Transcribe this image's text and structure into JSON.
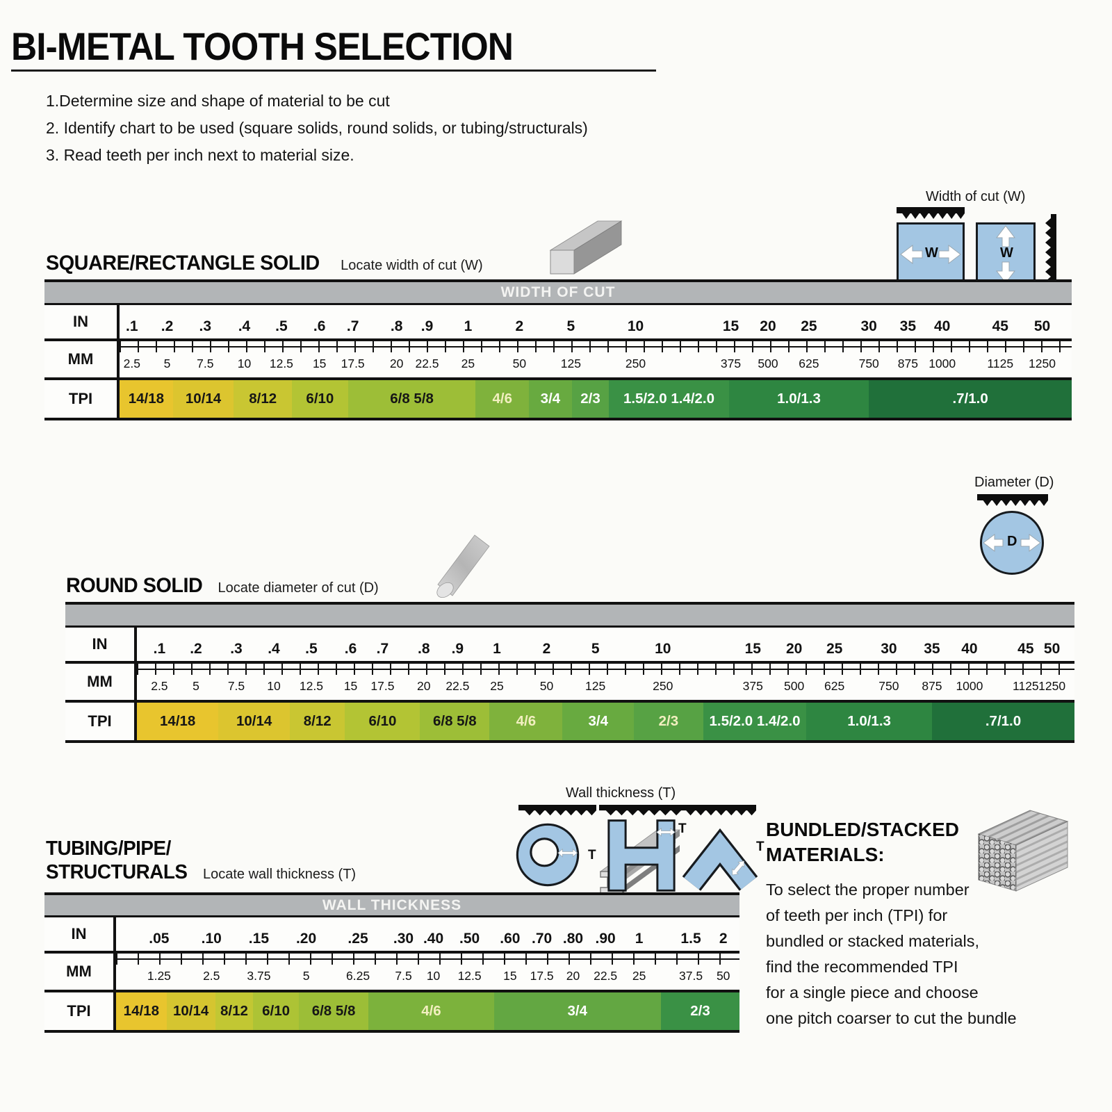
{
  "title": "BI-METAL TOOTH SELECTION",
  "instructions": [
    "1.Determine size and shape of material to be cut",
    "2. Identify chart to be used (square solids, round solids, or tubing/structurals)",
    "3. Read teeth per inch next to material size."
  ],
  "colors": {
    "band_gray": "#b2b5b7",
    "shape_blue": "#a3c6e3",
    "blade_black": "#0d0d0d",
    "tpi_yellow": "#e8c52e",
    "tpi_dark_green": "#20703a"
  },
  "icons": {
    "square_bar": "square-bar-3d-icon",
    "round_rod": "round-rod-3d-icon",
    "i_beam": "i-beam-3d-icon",
    "bundle": "bundled-tubes-3d-icon",
    "saw_blade": "saw-blade-teeth-icon"
  },
  "charts": {
    "square": {
      "heading": "SQUARE/RECTANGLE SOLID",
      "subheading": "Locate width of cut (W)",
      "band_label": "WIDTH OF CUT",
      "rows": {
        "in": "IN",
        "mm": "MM",
        "tpi": "TPI"
      },
      "in_values": [
        ".1",
        ".2",
        ".3",
        ".4",
        ".5",
        ".6",
        ".7",
        ".8",
        ".9",
        "1",
        "2",
        "5",
        "10",
        "15",
        "20",
        "25",
        "30",
        "35",
        "40",
        "45",
        "50"
      ],
      "mm_values": [
        "2.5",
        "5",
        "7.5",
        "10",
        "12.5",
        "15",
        "17.5",
        "20",
        "22.5",
        "25",
        "50",
        "125",
        "250",
        "375",
        "500",
        "625",
        "750",
        "875",
        "1000",
        "1125",
        "1250"
      ],
      "tpi_segments": [
        {
          "label": "14/18",
          "bg": "#e8c52e",
          "fg": "#161616"
        },
        {
          "label": "10/14",
          "bg": "#dcc52f",
          "fg": "#161616"
        },
        {
          "label": "8/12",
          "bg": "#c9c632",
          "fg": "#161616"
        },
        {
          "label": "6/10",
          "bg": "#b3c434",
          "fg": "#161616"
        },
        {
          "label": "6/8 5/8",
          "bg": "#9dbe37",
          "fg": "#161616"
        },
        {
          "label": "4/6",
          "bg": "#7fb23c",
          "fg": "#f2efc0"
        },
        {
          "label": "3/4",
          "bg": "#68aa40",
          "fg": "#ffffff"
        },
        {
          "label": "2/3",
          "bg": "#57a244",
          "fg": "#ffffff"
        },
        {
          "label": "1.5/2.0 1.4/2.0",
          "bg": "#3a9145",
          "fg": "#ffffff"
        },
        {
          "label": "1.0/1.3",
          "bg": "#2e8641",
          "fg": "#ffffff"
        },
        {
          "label": ".7/1.0",
          "bg": "#20703a",
          "fg": "#ffffff"
        }
      ],
      "figure": {
        "caption": "Width of cut (W)",
        "label_left": "W",
        "label_right": "W"
      }
    },
    "round": {
      "heading": "ROUND SOLID",
      "subheading": "Locate diameter of cut (D)",
      "band_label": "",
      "rows": {
        "in": "IN",
        "mm": "MM",
        "tpi": "TPI"
      },
      "in_values": [
        ".1",
        ".2",
        ".3",
        ".4",
        ".5",
        ".6",
        ".7",
        ".8",
        ".9",
        "1",
        "2",
        "5",
        "10",
        "15",
        "20",
        "25",
        "30",
        "35",
        "40",
        "45",
        "50"
      ],
      "mm_values": [
        "2.5",
        "5",
        "7.5",
        "10",
        "12.5",
        "15",
        "17.5",
        "20",
        "22.5",
        "25",
        "50",
        "125",
        "250",
        "375",
        "500",
        "625",
        "750",
        "875",
        "1000",
        "1125",
        "1250"
      ],
      "tpi_segments": [
        {
          "label": "14/18",
          "bg": "#e8c52e",
          "fg": "#161616"
        },
        {
          "label": "10/14",
          "bg": "#dcc52f",
          "fg": "#161616"
        },
        {
          "label": "8/12",
          "bg": "#c9c632",
          "fg": "#161616"
        },
        {
          "label": "6/10",
          "bg": "#b3c434",
          "fg": "#161616"
        },
        {
          "label": "6/8 5/8",
          "bg": "#9dbe37",
          "fg": "#161616"
        },
        {
          "label": "4/6",
          "bg": "#7fb23c",
          "fg": "#f2efc0"
        },
        {
          "label": "3/4",
          "bg": "#68aa40",
          "fg": "#ffffff"
        },
        {
          "label": "2/3",
          "bg": "#57a244",
          "fg": "#f2efc0"
        },
        {
          "label": "1.5/2.0 1.4/2.0",
          "bg": "#3a9145",
          "fg": "#ffffff"
        },
        {
          "label": "1.0/1.3",
          "bg": "#2e8641",
          "fg": "#ffffff"
        },
        {
          "label": ".7/1.0",
          "bg": "#20703a",
          "fg": "#ffffff"
        }
      ],
      "figure": {
        "caption": "Diameter (D)",
        "label": "D"
      }
    },
    "tubing": {
      "heading_line1": "TUBING/PIPE/",
      "heading_line2": "STRUCTURALS",
      "subheading": "Locate wall thickness (T)",
      "band_label": "WALL THICKNESS",
      "rows": {
        "in": "IN",
        "mm": "MM",
        "tpi": "TPI"
      },
      "in_values": [
        ".05",
        ".10",
        ".15",
        ".20",
        ".25",
        ".30",
        ".40",
        ".50",
        ".60",
        ".70",
        ".80",
        ".90",
        "1",
        "1.5",
        "2"
      ],
      "mm_values": [
        "1.25",
        "2.5",
        "3.75",
        "5",
        "6.25",
        "7.5",
        "10",
        "12.5",
        "15",
        "17.5",
        "20",
        "22.5",
        "25",
        "37.5",
        "50"
      ],
      "tpi_segments": [
        {
          "label": "14/18",
          "bg": "#e8c52e",
          "fg": "#161616"
        },
        {
          "label": "10/14",
          "bg": "#d5c530",
          "fg": "#161616"
        },
        {
          "label": "8/12",
          "bg": "#c2c733",
          "fg": "#161616"
        },
        {
          "label": "6/10",
          "bg": "#adc335",
          "fg": "#161616"
        },
        {
          "label": "6/8 5/8",
          "bg": "#9cbe37",
          "fg": "#161616"
        },
        {
          "label": "4/6",
          "bg": "#7cb23c",
          "fg": "#f2efc0"
        },
        {
          "label": "3/4",
          "bg": "#63a742",
          "fg": "#ffffff"
        },
        {
          "label": "2/3",
          "bg": "#3a9145",
          "fg": "#ffffff"
        }
      ],
      "figure": {
        "caption": "Wall thickness (T)",
        "label_ring": "T",
        "label_beam": "T",
        "label_angle": "T"
      }
    }
  },
  "bundled": {
    "heading_line1": "BUNDLED/STACKED",
    "heading_line2": "MATERIALS:",
    "lines": [
      "To select the proper number",
      "of teeth per inch (TPI) for",
      "bundled or stacked materials,",
      "find the recommended TPI",
      "for a single piece and choose",
      "one pitch coarser to cut the bundle"
    ]
  }
}
